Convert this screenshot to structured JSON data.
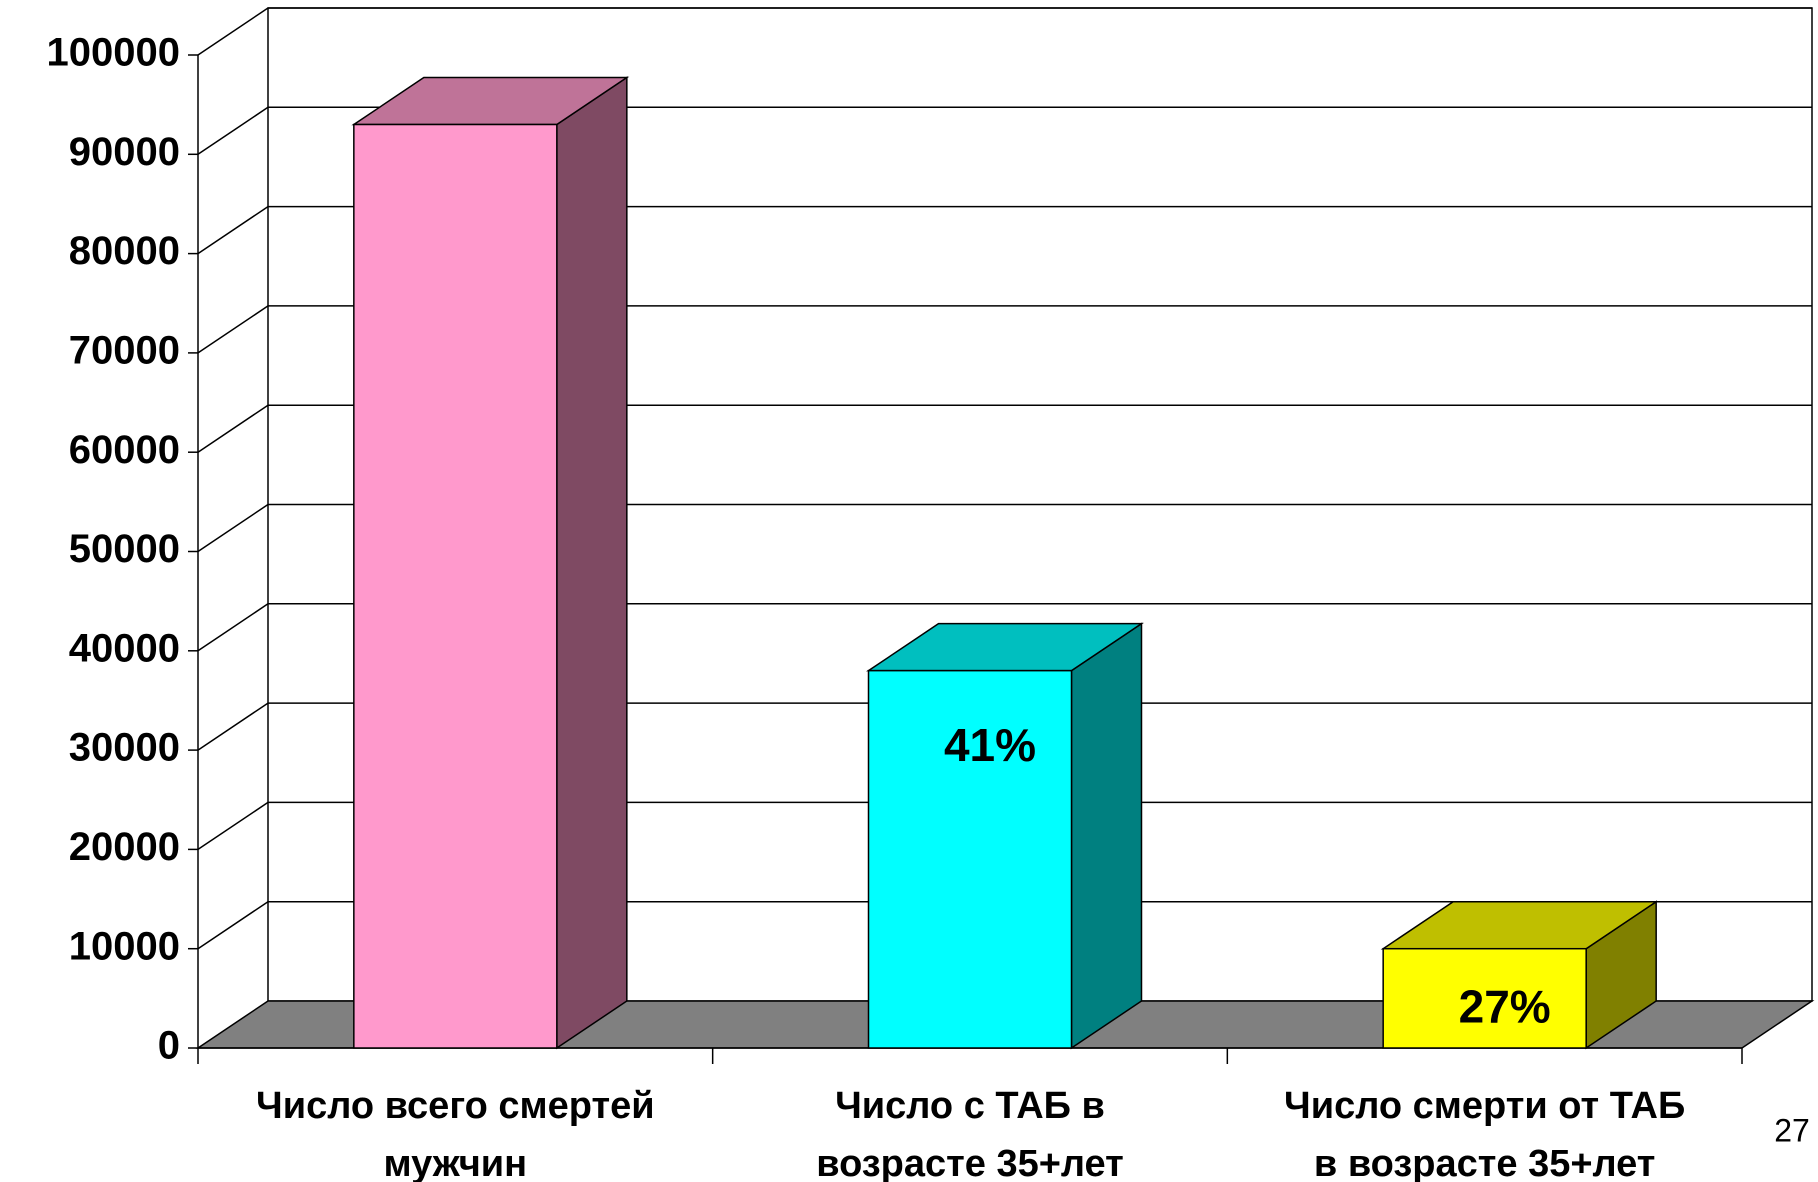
{
  "chart_data": {
    "type": "bar3d",
    "categories": [
      [
        "Число всего смертей",
        "мужчин"
      ],
      [
        "Число с ТАБ в",
        "возрасте 35+лет"
      ],
      [
        "Число смерти от ТАБ",
        "в возрасте 35+лет"
      ]
    ],
    "values": [
      93000,
      38000,
      10000
    ],
    "colors": [
      "#ff99cc",
      "#00ffff",
      "#ffff00"
    ],
    "top_colors": [
      "#bf7398",
      "#00bfbf",
      "#bfbf00"
    ],
    "side_colors": [
      "#7f4a63",
      "#008080",
      "#808000"
    ],
    "bar_annotations": [
      null,
      "41%",
      "27%"
    ],
    "page_number": "27",
    "ylim": [
      0,
      100000
    ],
    "yticks": [
      0,
      10000,
      20000,
      30000,
      40000,
      50000,
      60000,
      70000,
      80000,
      90000,
      100000
    ],
    "grid": true
  }
}
